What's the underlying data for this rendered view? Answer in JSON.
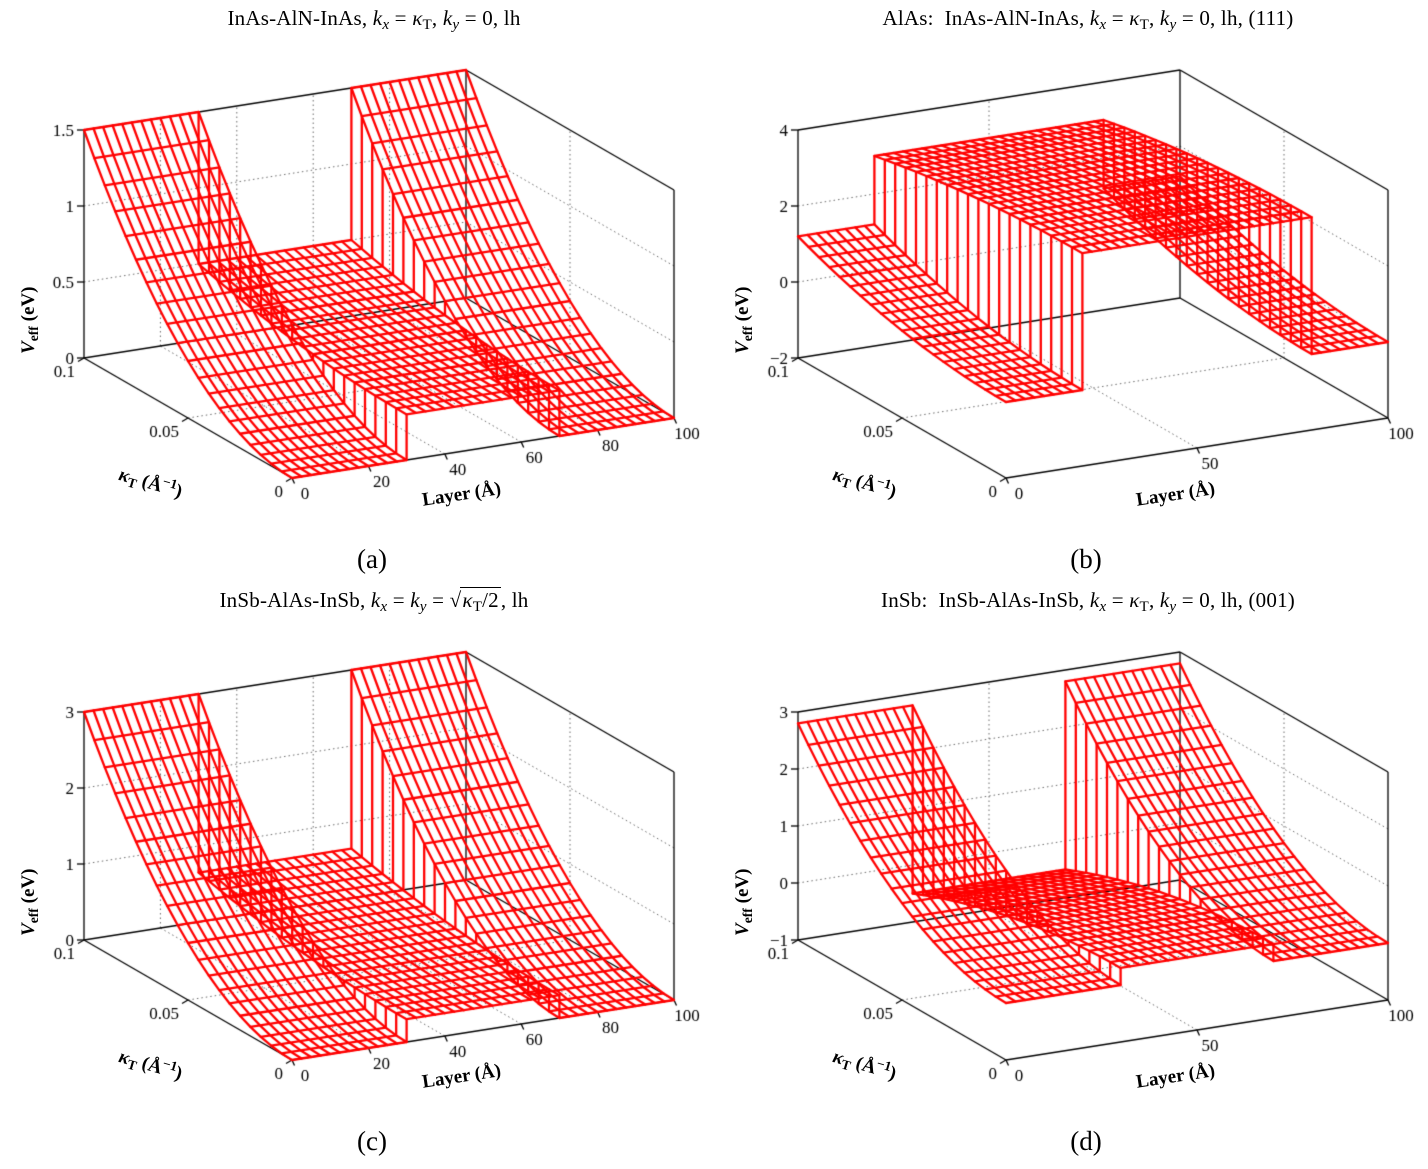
{
  "page": {
    "background": "#ffffff"
  },
  "axis_labels": {
    "x": [
      {
        "t": "Layer (Å)"
      }
    ],
    "k": [
      {
        "t": "κ",
        "i": true
      },
      {
        "t": "T",
        "sub": true
      },
      {
        "t": " (Å"
      },
      {
        "t": "−1",
        "sup": true
      },
      {
        "t": ")"
      }
    ],
    "z": [
      {
        "t": "V",
        "i": true
      },
      {
        "t": "eff",
        "sub": true
      },
      {
        "t": " (eV)"
      }
    ]
  },
  "figure": {
    "panels": [
      {
        "caption": "(a)",
        "title": [
          {
            "t": "InAs-AlN-InAs, "
          },
          {
            "t": "k",
            "i": true
          },
          {
            "t": "x",
            "i": true,
            "sub": true
          },
          {
            "t": " = "
          },
          {
            "t": "κ",
            "i": true
          },
          {
            "t": "T",
            "sub": true
          },
          {
            "t": ", "
          },
          {
            "t": "k",
            "i": true
          },
          {
            "t": "y",
            "i": true,
            "sub": true
          },
          {
            "t": " = 0, lh"
          }
        ]
      },
      {
        "caption": "(b)",
        "title": [
          {
            "t": "AlAs:  InAs-AlN-InAs, "
          },
          {
            "t": "k",
            "i": true
          },
          {
            "t": "x",
            "i": true,
            "sub": true
          },
          {
            "t": " = "
          },
          {
            "t": "κ",
            "i": true
          },
          {
            "t": "T",
            "sub": true
          },
          {
            "t": ", "
          },
          {
            "t": "k",
            "i": true
          },
          {
            "t": "y",
            "i": true,
            "sub": true
          },
          {
            "t": " = 0, lh, (111)"
          }
        ]
      },
      {
        "caption": "(c)",
        "title": [
          {
            "t": "InSb-AlAs-InSb, "
          },
          {
            "t": "k",
            "i": true
          },
          {
            "t": "x",
            "i": true,
            "sub": true
          },
          {
            "t": " = "
          },
          {
            "t": "k",
            "i": true
          },
          {
            "t": "y",
            "i": true,
            "sub": true
          },
          {
            "t": " = "
          },
          {
            "sqrt": [
              {
                "t": "κ",
                "i": true
              },
              {
                "t": "T",
                "sub": true
              },
              {
                "t": "/2"
              }
            ]
          },
          {
            "t": ", lh"
          }
        ]
      },
      {
        "caption": "(d)",
        "title": [
          {
            "t": "InSb:  InSb-AlAs-InSb, "
          },
          {
            "t": "k",
            "i": true
          },
          {
            "t": "x",
            "i": true,
            "sub": true
          },
          {
            "t": " = "
          },
          {
            "t": "κ",
            "i": true
          },
          {
            "t": "T",
            "sub": true
          },
          {
            "t": ", "
          },
          {
            "t": "k",
            "i": true
          },
          {
            "t": "y",
            "i": true,
            "sub": true
          },
          {
            "t": " = 0, lh, (001)"
          }
        ]
      }
    ]
  },
  "view_hint": {
    "ox": 292,
    "oy": 436,
    "XW": 382,
    "XH": 60,
    "KX": 208,
    "KH": 120,
    "ZH": 228
  },
  "chart_data": [
    {
      "panel": "a",
      "type": "3d-waterfall-mesh",
      "title": "InAs-AlN-InAs, kx = κT, ky = 0, lh",
      "xlabel": "Layer (Å)",
      "ylabel": "κT (Å⁻¹)",
      "zlabel": "Veff (eV)",
      "x_range": [
        0,
        100
      ],
      "x_ticks": [
        {
          "v": 0,
          "label": "0"
        },
        {
          "v": 20,
          "label": "20"
        },
        {
          "v": 40,
          "label": "40"
        },
        {
          "v": 60,
          "label": "60"
        },
        {
          "v": 80,
          "label": "80"
        },
        {
          "v": 100,
          "label": "100"
        }
      ],
      "k_range": [
        0,
        0.1
      ],
      "k_ticks": [
        {
          "v": 0,
          "label": "0"
        },
        {
          "v": 0.05,
          "label": "0.05"
        },
        {
          "v": 0.1,
          "label": "0.1"
        }
      ],
      "zlim": [
        0,
        1.5
      ],
      "z_ticks": [
        {
          "v": 0,
          "label": "0"
        },
        {
          "v": 0.5,
          "label": "0.5"
        },
        {
          "v": 1,
          "label": "1"
        },
        {
          "v": 1.5,
          "label": "1.5"
        }
      ],
      "regions": [
        {
          "material": "InAs",
          "x": [
            0,
            30
          ],
          "v_at_k0": 0,
          "v_at_kmax": 1.5
        },
        {
          "material": "AlN",
          "x": [
            30,
            70
          ],
          "v_at_k0": 0.3,
          "v_at_kmax": 0.5
        },
        {
          "material": "InAs",
          "x": [
            70,
            100
          ],
          "v_at_k0": 0,
          "v_at_kmax": 1.5
        }
      ],
      "model": "Veff(x,κT) = v_at_k0 + (v_at_kmax − v_at_k0)·(κT/0.1)²",
      "n_kappa_lines": 21,
      "x_step": 2.5,
      "line_color": "#ff0000",
      "grid": "dotted"
    },
    {
      "panel": "b",
      "type": "3d-waterfall-mesh",
      "title": "AlAs: InAs-AlN-InAs, kx = κT, ky = 0, lh, (111)",
      "xlabel": "Layer (Å)",
      "ylabel": "κT (Å⁻¹)",
      "zlabel": "Veff (eV)",
      "x_range": [
        0,
        100
      ],
      "x_ticks": [
        {
          "v": 0,
          "label": "0"
        },
        {
          "v": 50,
          "label": "50"
        },
        {
          "v": 100,
          "label": "100"
        }
      ],
      "k_range": [
        0,
        0.1
      ],
      "k_ticks": [
        {
          "v": 0,
          "label": "0"
        },
        {
          "v": 0.05,
          "label": "0.05"
        },
        {
          "v": 0.1,
          "label": "0.1"
        }
      ],
      "zlim": [
        -2,
        4
      ],
      "z_ticks": [
        {
          "v": -2,
          "label": "−2"
        },
        {
          "v": 0,
          "label": "0"
        },
        {
          "v": 2,
          "label": "2"
        },
        {
          "v": 4,
          "label": "4"
        }
      ],
      "regions": [
        {
          "material": "InAs",
          "x": [
            0,
            20
          ],
          "v_at_k0": 0,
          "v_at_kmax": 1.2
        },
        {
          "material": "AlN",
          "x": [
            20,
            80
          ],
          "v_at_k0": 3.6,
          "v_at_kmax": 3.0
        },
        {
          "material": "InAs",
          "x": [
            80,
            100
          ],
          "v_at_k0": 0,
          "v_at_kmax": 1.2
        }
      ],
      "model": "Veff(x,κT) = v_at_k0 + (v_at_kmax − v_at_k0)·(κT/0.1)²",
      "n_kappa_lines": 21,
      "x_step": 2.5,
      "line_color": "#ff0000",
      "grid": "dotted"
    },
    {
      "panel": "c",
      "type": "3d-waterfall-mesh",
      "title": "InSb-AlAs-InSb, kx = ky = √(κT/2), lh",
      "xlabel": "Layer (Å)",
      "ylabel": "κT (Å⁻¹)",
      "zlabel": "Veff (eV)",
      "x_range": [
        0,
        100
      ],
      "x_ticks": [
        {
          "v": 0,
          "label": "0"
        },
        {
          "v": 20,
          "label": "20"
        },
        {
          "v": 40,
          "label": "40"
        },
        {
          "v": 60,
          "label": "60"
        },
        {
          "v": 80,
          "label": "80"
        },
        {
          "v": 100,
          "label": "100"
        }
      ],
      "k_range": [
        0,
        0.1
      ],
      "k_ticks": [
        {
          "v": 0,
          "label": "0"
        },
        {
          "v": 0.05,
          "label": "0.05"
        },
        {
          "v": 0.1,
          "label": "0.1"
        }
      ],
      "zlim": [
        0,
        3
      ],
      "z_ticks": [
        {
          "v": 0,
          "label": "0"
        },
        {
          "v": 1,
          "label": "1"
        },
        {
          "v": 2,
          "label": "2"
        },
        {
          "v": 3,
          "label": "3"
        }
      ],
      "regions": [
        {
          "material": "InSb",
          "x": [
            0,
            30
          ],
          "v_at_k0": 0,
          "v_at_kmax": 3.0
        },
        {
          "material": "AlAs",
          "x": [
            30,
            70
          ],
          "v_at_k0": 0.3,
          "v_at_kmax": 0.65
        },
        {
          "material": "InSb",
          "x": [
            70,
            100
          ],
          "v_at_k0": 0,
          "v_at_kmax": 3.0
        }
      ],
      "model": "Veff(x,κT) = v_at_k0 + (v_at_kmax − v_at_k0)·(κT/0.1)²",
      "n_kappa_lines": 21,
      "x_step": 2.5,
      "line_color": "#ff0000",
      "grid": "dotted"
    },
    {
      "panel": "d",
      "type": "3d-waterfall-mesh",
      "title": "InSb: InSb-AlAs-InSb, kx = κT, ky = 0, lh, (001)",
      "xlabel": "Layer (Å)",
      "ylabel": "κT (Å⁻¹)",
      "zlabel": "Veff (eV)",
      "x_range": [
        0,
        100
      ],
      "x_ticks": [
        {
          "v": 0,
          "label": "0"
        },
        {
          "v": 50,
          "label": "50"
        },
        {
          "v": 100,
          "label": "100"
        }
      ],
      "k_range": [
        0,
        0.1
      ],
      "k_ticks": [
        {
          "v": 0,
          "label": "0"
        },
        {
          "v": 0.05,
          "label": "0.05"
        },
        {
          "v": 0.1,
          "label": "0.1"
        }
      ],
      "zlim": [
        -1,
        3
      ],
      "z_ticks": [
        {
          "v": -1,
          "label": "−1"
        },
        {
          "v": 0,
          "label": "0"
        },
        {
          "v": 1,
          "label": "1"
        },
        {
          "v": 2,
          "label": "2"
        },
        {
          "v": 3,
          "label": "3"
        }
      ],
      "regions": [
        {
          "material": "InSb",
          "x": [
            0,
            30
          ],
          "v_at_k0": 0,
          "v_at_kmax": 2.8
        },
        {
          "material": "AlAs",
          "x": [
            30,
            70
          ],
          "v_at_k0": 0.3,
          "v_at_kmax": -0.5
        },
        {
          "material": "InSb",
          "x": [
            70,
            100
          ],
          "v_at_k0": 0,
          "v_at_kmax": 2.8
        }
      ],
      "model": "Veff(x,κT) = v_at_k0 + (v_at_kmax − v_at_k0)·(κT/0.1)²",
      "n_kappa_lines": 21,
      "x_step": 2.5,
      "line_color": "#ff0000",
      "grid": "dotted"
    }
  ]
}
